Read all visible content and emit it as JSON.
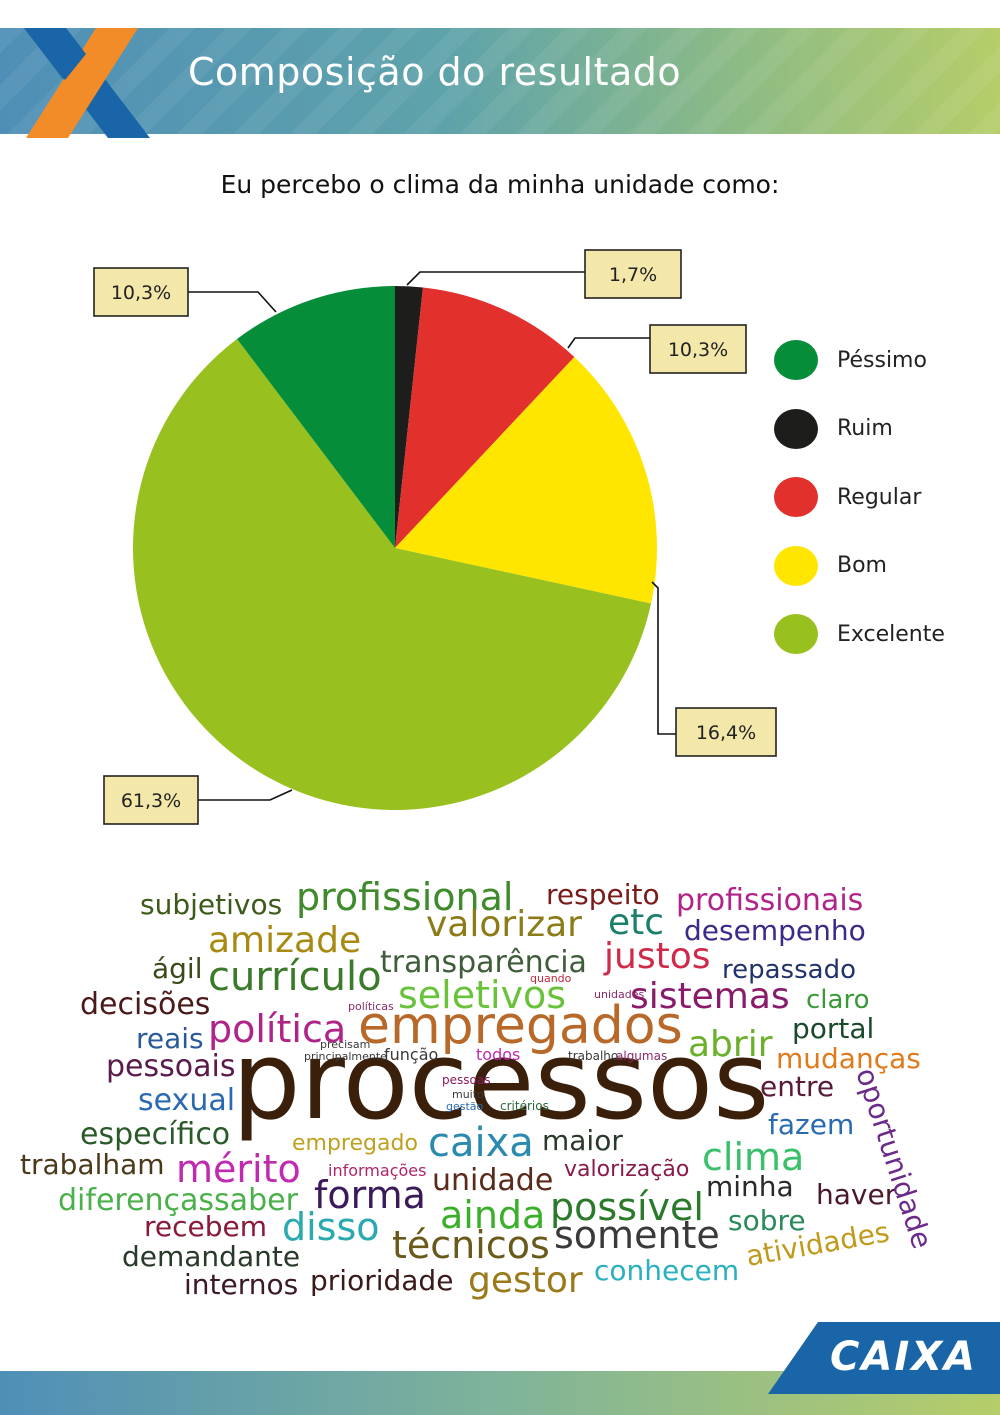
{
  "header": {
    "title": "Composição do resultado"
  },
  "question": "Eu percebo o clima da minha unidade como:",
  "chart_data": {
    "type": "pie",
    "title": "Eu percebo o clima da minha unidade como:",
    "categories": [
      "Péssimo",
      "Ruim",
      "Regular",
      "Bom",
      "Excelente"
    ],
    "values": [
      10.3,
      1.7,
      10.3,
      16.4,
      61.3
    ],
    "labels": [
      "10,3%",
      "1,7%",
      "10,3%",
      "16,4%",
      "61,3%"
    ],
    "colors": [
      "#058d3a",
      "#1d1d1b",
      "#e2302c",
      "#ffe600",
      "#98c120"
    ],
    "legend_position": "right",
    "slice_order": [
      "Ruim",
      "Regular",
      "Bom",
      "Excelente",
      "Péssimo"
    ]
  },
  "legend": [
    {
      "label": "Péssimo",
      "color": "#058d3a"
    },
    {
      "label": "Ruim",
      "color": "#1d1d1b"
    },
    {
      "label": "Regular",
      "color": "#e2302c"
    },
    {
      "label": "Bom",
      "color": "#ffe600"
    },
    {
      "label": "Excelente",
      "color": "#98c120"
    }
  ],
  "word_cloud": {
    "words": [
      {
        "text": "processos",
        "color": "#3a1f0b"
      },
      {
        "text": "empregados",
        "color": "#b8692a"
      },
      {
        "text": "profissional",
        "color": "#3f8a2b"
      },
      {
        "text": "subjetivos",
        "color": "#3e5a1b"
      },
      {
        "text": "respeito",
        "color": "#7a1b1b"
      },
      {
        "text": "profissionais",
        "color": "#b0248a"
      },
      {
        "text": "amizade",
        "color": "#a88a12"
      },
      {
        "text": "valorizar",
        "color": "#8c7b18"
      },
      {
        "text": "etc",
        "color": "#1b7f6b"
      },
      {
        "text": "desempenho",
        "color": "#3b2a8a"
      },
      {
        "text": "ágil",
        "color": "#3a4a1a"
      },
      {
        "text": "currículo",
        "color": "#3a7a2a"
      },
      {
        "text": "transparência",
        "color": "#3f5d3a"
      },
      {
        "text": "justos",
        "color": "#d02a4a"
      },
      {
        "text": "repassado",
        "color": "#22336b"
      },
      {
        "text": "decisões",
        "color": "#4a1a1a"
      },
      {
        "text": "seletivos",
        "color": "#6ac23a"
      },
      {
        "text": "sistemas",
        "color": "#8a1a6a"
      },
      {
        "text": "claro",
        "color": "#3a9a3a"
      },
      {
        "text": "reais",
        "color": "#2a5a9a"
      },
      {
        "text": "política",
        "color": "#b0248a"
      },
      {
        "text": "portal",
        "color": "#1b4a2b"
      },
      {
        "text": "abrir",
        "color": "#6ab02a"
      },
      {
        "text": "pessoais",
        "color": "#5a1a4a"
      },
      {
        "text": "mudanças",
        "color": "#e07a1a"
      },
      {
        "text": "sexual",
        "color": "#2a6ab0"
      },
      {
        "text": "entre",
        "color": "#5a1a3a"
      },
      {
        "text": "oportunidade",
        "color": "#6a2a8a"
      },
      {
        "text": "específico",
        "color": "#2a5a2a"
      },
      {
        "text": "fazem",
        "color": "#2a6ab0"
      },
      {
        "text": "caixa",
        "color": "#2a8ab0"
      },
      {
        "text": "maior",
        "color": "#2a3a2a"
      },
      {
        "text": "empregado",
        "color": "#c0a020"
      },
      {
        "text": "trabalham",
        "color": "#4a3a1a"
      },
      {
        "text": "mérito",
        "color": "#c02ab0"
      },
      {
        "text": "clima",
        "color": "#3ac06a"
      },
      {
        "text": "informações",
        "color": "#b0246a"
      },
      {
        "text": "unidade",
        "color": "#5a2a1a"
      },
      {
        "text": "valorização",
        "color": "#8a1a4a"
      },
      {
        "text": "diferençassaber",
        "color": "#4ab04a"
      },
      {
        "text": "forma",
        "color": "#3a1a5a"
      },
      {
        "text": "minha",
        "color": "#2a2a2a"
      },
      {
        "text": "haver",
        "color": "#4a1a2a"
      },
      {
        "text": "recebem",
        "color": "#8a1a3a"
      },
      {
        "text": "disso",
        "color": "#2aaab0"
      },
      {
        "text": "ainda",
        "color": "#3ab02a"
      },
      {
        "text": "possível",
        "color": "#2a7a2a"
      },
      {
        "text": "sobre",
        "color": "#2a8a5a"
      },
      {
        "text": "demandante",
        "color": "#2a3a2a"
      },
      {
        "text": "técnicos",
        "color": "#6a5a1a"
      },
      {
        "text": "somente",
        "color": "#3a3a3a"
      },
      {
        "text": "atividades",
        "color": "#c09a1a"
      },
      {
        "text": "internos",
        "color": "#3a1a2a"
      },
      {
        "text": "prioridade",
        "color": "#3a1a1a"
      },
      {
        "text": "gestor",
        "color": "#9a7a1a"
      },
      {
        "text": "conhecem",
        "color": "#2ab0c0"
      },
      {
        "text": "função",
        "color": "#3a3a3a"
      },
      {
        "text": "todos",
        "color": "#c02ab0"
      },
      {
        "text": "trabalho",
        "color": "#3a3a3a"
      },
      {
        "text": "algumas",
        "color": "#8a2a6a"
      },
      {
        "text": "principalmente",
        "color": "#3a3a3a"
      },
      {
        "text": "precisam",
        "color": "#3a3a3a"
      },
      {
        "text": "políticas",
        "color": "#8a2a6a"
      },
      {
        "text": "quando",
        "color": "#c02a3a"
      },
      {
        "text": "unidades",
        "color": "#8a2a6a"
      },
      {
        "text": "pessoas",
        "color": "#8a1a5a"
      },
      {
        "text": "muito",
        "color": "#3a3a3a"
      },
      {
        "text": "gestão",
        "color": "#2a6ab0"
      },
      {
        "text": "critérios",
        "color": "#2a6a3a"
      }
    ]
  },
  "footer": {
    "brand": "CAIXA"
  }
}
